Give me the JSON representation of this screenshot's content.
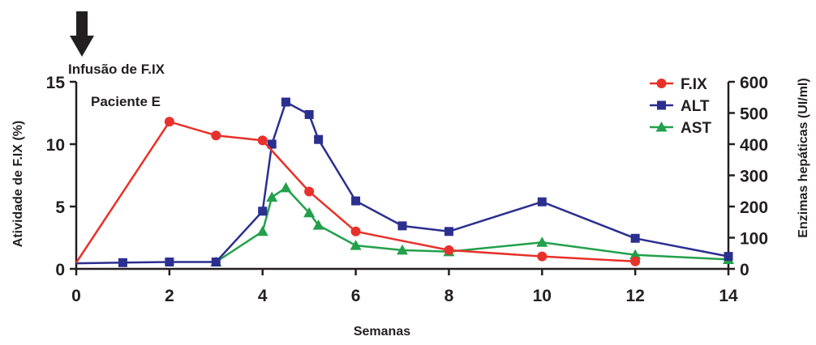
{
  "chart_data": {
    "type": "line",
    "title": "",
    "annotations": {
      "infusion_label": "Infusão de F.IX",
      "patient_label": "Paciente E"
    },
    "xlabel": "Semanas",
    "ylabel_left": "Atividade de F.IX (%)",
    "ylabel_right": "Enzimas hepáticas (UI/ml)",
    "xlim": [
      0,
      14
    ],
    "ylim_left": [
      0,
      15
    ],
    "ylim_right": [
      0,
      600
    ],
    "x_ticks": [
      "0",
      "2",
      "4",
      "6",
      "8",
      "10",
      "12",
      "14"
    ],
    "y_ticks_left": [
      "0",
      "5",
      "10",
      "15"
    ],
    "y_ticks_right": [
      "0",
      "100",
      "200",
      "300",
      "400",
      "500",
      "600"
    ],
    "grid": false,
    "legend_position": "top-right",
    "series": [
      {
        "name": "F.IX",
        "axis": "left",
        "color": "#e8312a",
        "marker": "circle",
        "x": [
          0,
          2,
          3,
          4,
          5,
          6,
          8,
          10,
          12
        ],
        "y": [
          0.5,
          11.8,
          10.7,
          10.3,
          6.2,
          3.0,
          1.5,
          1.0,
          0.6
        ]
      },
      {
        "name": "ALT",
        "axis": "right",
        "color": "#2b2f8f",
        "marker": "square",
        "x": [
          0,
          1,
          2,
          3,
          4,
          4.2,
          4.5,
          5,
          5.2,
          6,
          7,
          8,
          10,
          12,
          14
        ],
        "y": [
          18,
          20,
          22,
          22,
          185,
          400,
          535,
          495,
          415,
          218,
          138,
          120,
          215,
          98,
          40
        ]
      },
      {
        "name": "AST",
        "axis": "right",
        "color": "#22a04b",
        "marker": "triangle",
        "x": [
          3,
          4,
          4.2,
          4.5,
          5,
          5.2,
          6,
          7,
          8,
          10,
          12,
          14
        ],
        "y": [
          22,
          120,
          230,
          260,
          180,
          140,
          75,
          60,
          55,
          85,
          45,
          30
        ]
      }
    ]
  }
}
